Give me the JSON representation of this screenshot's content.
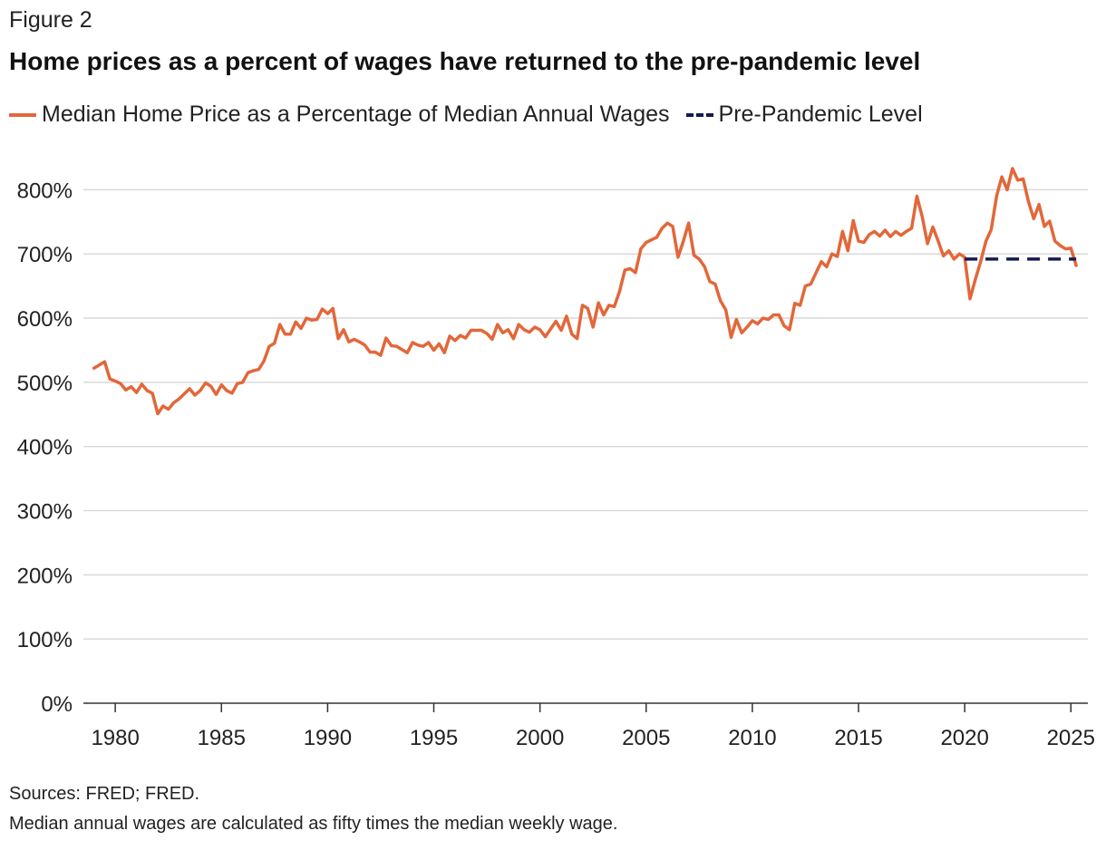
{
  "figure_label": "Figure 2",
  "title": "Home prices as a percent of wages have returned to the pre-pandemic level",
  "source": "Sources: FRED; FRED.",
  "note": "Median annual wages are calculated as fifty times the median weekly wage.",
  "colors": {
    "series": "#e2673a",
    "baseline": "#141a4f",
    "grid": "#d9d9d9",
    "axis": "#333333"
  },
  "chart_data": {
    "type": "line",
    "xlim": [
      1978.5,
      2025.8
    ],
    "ylim": [
      0,
      850
    ],
    "x_ticks": [
      1980,
      1985,
      1990,
      1995,
      2000,
      2005,
      2010,
      2015,
      2020,
      2025
    ],
    "y_ticks": [
      0,
      100,
      200,
      300,
      400,
      500,
      600,
      700,
      800
    ],
    "y_tick_labels": [
      "0%",
      "100%",
      "200%",
      "300%",
      "400%",
      "500%",
      "600%",
      "700%",
      "800%"
    ],
    "grid": "horizontal",
    "legend": "top-left",
    "series": [
      {
        "name": "Median Home Price as a Percentage of Median Annual Wages",
        "style": "solid",
        "x": [
          1979.0,
          1979.25,
          1979.5,
          1979.75,
          1980.0,
          1980.25,
          1980.5,
          1980.75,
          1981.0,
          1981.25,
          1981.5,
          1981.75,
          1982.0,
          1982.25,
          1982.5,
          1982.75,
          1983.0,
          1983.25,
          1983.5,
          1983.75,
          1984.0,
          1984.25,
          1984.5,
          1984.75,
          1985.0,
          1985.25,
          1985.5,
          1985.75,
          1986.0,
          1986.25,
          1986.5,
          1986.75,
          1987.0,
          1987.25,
          1987.5,
          1987.75,
          1988.0,
          1988.25,
          1988.5,
          1988.75,
          1989.0,
          1989.25,
          1989.5,
          1989.75,
          1990.0,
          1990.25,
          1990.5,
          1990.75,
          1991.0,
          1991.25,
          1991.5,
          1991.75,
          1992.0,
          1992.25,
          1992.5,
          1992.75,
          1993.0,
          1993.25,
          1993.5,
          1993.75,
          1994.0,
          1994.25,
          1994.5,
          1994.75,
          1995.0,
          1995.25,
          1995.5,
          1995.75,
          1996.0,
          1996.25,
          1996.5,
          1996.75,
          1997.0,
          1997.25,
          1997.5,
          1997.75,
          1998.0,
          1998.25,
          1998.5,
          1998.75,
          1999.0,
          1999.25,
          1999.5,
          1999.75,
          2000.0,
          2000.25,
          2000.5,
          2000.75,
          2001.0,
          2001.25,
          2001.5,
          2001.75,
          2002.0,
          2002.25,
          2002.5,
          2002.75,
          2003.0,
          2003.25,
          2003.5,
          2003.75,
          2004.0,
          2004.25,
          2004.5,
          2004.75,
          2005.0,
          2005.25,
          2005.5,
          2005.75,
          2006.0,
          2006.25,
          2006.5,
          2006.75,
          2007.0,
          2007.25,
          2007.5,
          2007.75,
          2008.0,
          2008.25,
          2008.5,
          2008.75,
          2009.0,
          2009.25,
          2009.5,
          2009.75,
          2010.0,
          2010.25,
          2010.5,
          2010.75,
          2011.0,
          2011.25,
          2011.5,
          2011.75,
          2012.0,
          2012.25,
          2012.5,
          2012.75,
          2013.0,
          2013.25,
          2013.5,
          2013.75,
          2014.0,
          2014.25,
          2014.5,
          2014.75,
          2015.0,
          2015.25,
          2015.5,
          2015.75,
          2016.0,
          2016.25,
          2016.5,
          2016.75,
          2017.0,
          2017.25,
          2017.5,
          2017.75,
          2018.0,
          2018.25,
          2018.5,
          2018.75,
          2019.0,
          2019.25,
          2019.5,
          2019.75,
          2020.0,
          2020.25,
          2020.5,
          2020.75,
          2021.0,
          2021.25,
          2021.5,
          2021.75,
          2022.0,
          2022.25,
          2022.5,
          2022.75,
          2023.0,
          2023.25,
          2023.5,
          2023.75,
          2024.0,
          2024.25,
          2024.5,
          2024.75,
          2025.0,
          2025.25
        ],
        "values": [
          522,
          527,
          532,
          505,
          502,
          498,
          488,
          493,
          484,
          497,
          487,
          483,
          451,
          463,
          458,
          468,
          474,
          482,
          490,
          480,
          487,
          499,
          494,
          481,
          496,
          487,
          483,
          498,
          500,
          515,
          518,
          520,
          533,
          556,
          561,
          590,
          575,
          575,
          594,
          584,
          600,
          597,
          598,
          614,
          607,
          615,
          568,
          582,
          563,
          567,
          563,
          558,
          547,
          547,
          542,
          569,
          557,
          556,
          551,
          546,
          562,
          558,
          556,
          562,
          550,
          560,
          546,
          572,
          565,
          573,
          569,
          581,
          581,
          581,
          576,
          567,
          590,
          577,
          582,
          568,
          590,
          582,
          578,
          586,
          582,
          571,
          583,
          595,
          581,
          603,
          575,
          568,
          620,
          615,
          586,
          624,
          605,
          620,
          618,
          642,
          675,
          677,
          671,
          708,
          718,
          722,
          726,
          740,
          748,
          743,
          695,
          720,
          748,
          698,
          692,
          680,
          657,
          653,
          627,
          613,
          570,
          598,
          577,
          586,
          596,
          591,
          600,
          598,
          605,
          605,
          588,
          582,
          623,
          620,
          650,
          653,
          671,
          688,
          680,
          700,
          696,
          735,
          705,
          752,
          720,
          718,
          730,
          735,
          728,
          737,
          727,
          735,
          729,
          735,
          740,
          790,
          758,
          716,
          742,
          720,
          697,
          705,
          692,
          700,
          695,
          630,
          660,
          688,
          720,
          738,
          790,
          820,
          800,
          833,
          815,
          817,
          782,
          755,
          777,
          743,
          751,
          720,
          713,
          708,
          709,
          682
        ]
      },
      {
        "name": "Pre-Pandemic Level",
        "style": "dashed",
        "x": [
          2020.0,
          2025.25
        ],
        "values": [
          692,
          692
        ]
      }
    ]
  }
}
